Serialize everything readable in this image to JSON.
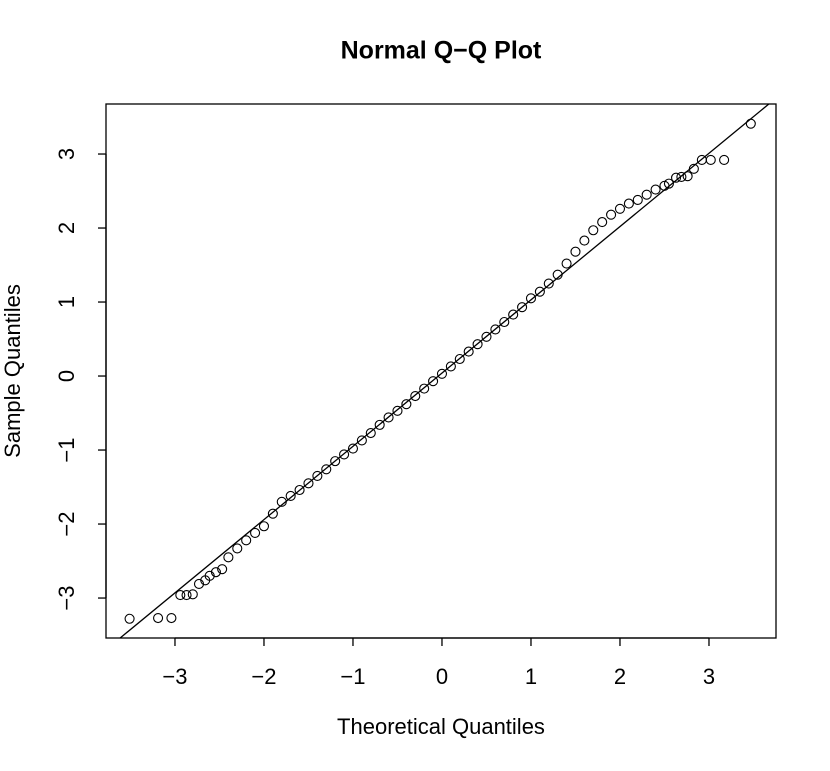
{
  "chart_data": {
    "type": "scatter",
    "title": "Normal Q−Q Plot",
    "x_label": "Theoretical Quantiles",
    "y_label": "Sample Quantiles",
    "xlim": [
      -3.775,
      3.753
    ],
    "ylim": [
      -3.54,
      3.676
    ],
    "xticks": [
      {
        "value": -3,
        "label": "−3"
      },
      {
        "value": -2,
        "label": "−2"
      },
      {
        "value": -1,
        "label": "−1"
      },
      0,
      1,
      2,
      3
    ],
    "yticks": [
      {
        "value": -3,
        "label": "−3"
      },
      {
        "value": -2,
        "label": "−2"
      },
      {
        "value": -1,
        "label": "−1"
      },
      0,
      1,
      2,
      3
    ],
    "color": "#000000",
    "reference_line": {
      "intercept": 0.04,
      "slope": 0.99
    },
    "x": [
      -3.51,
      -3.19,
      -3.04,
      -2.94,
      -2.87,
      -2.8,
      -2.73,
      -2.66,
      -2.61,
      -2.54,
      -2.47,
      -2.4,
      -2.3,
      -2.2,
      -2.1,
      -2.0,
      -1.9,
      -1.8,
      -1.7,
      -1.6,
      -1.5,
      -1.4,
      -1.3,
      -1.2,
      -1.1,
      -1.0,
      -0.9,
      -0.8,
      -0.7,
      -0.6,
      -0.5,
      -0.4,
      -0.3,
      -0.2,
      -0.1,
      0,
      0.1,
      0.2,
      0.3,
      0.4,
      0.5,
      0.6,
      0.7,
      0.8,
      0.9,
      1.0,
      1.1,
      1.2,
      1.3,
      1.4,
      1.5,
      1.6,
      1.7,
      1.8,
      1.9,
      2.0,
      2.1,
      2.2,
      2.3,
      2.4,
      2.5,
      2.55,
      2.63,
      2.69,
      2.76,
      2.83,
      2.92,
      3.02,
      3.17,
      3.47
    ],
    "values": [
      -3.28,
      -3.27,
      -3.27,
      -2.96,
      -2.96,
      -2.95,
      -2.81,
      -2.76,
      -2.7,
      -2.65,
      -2.61,
      -2.45,
      -2.33,
      -2.22,
      -2.12,
      -2.03,
      -1.86,
      -1.7,
      -1.62,
      -1.54,
      -1.45,
      -1.35,
      -1.26,
      -1.15,
      -1.06,
      -0.98,
      -0.87,
      -0.77,
      -0.66,
      -0.56,
      -0.47,
      -0.38,
      -0.27,
      -0.17,
      -0.07,
      0.03,
      0.13,
      0.23,
      0.33,
      0.43,
      0.53,
      0.63,
      0.73,
      0.83,
      0.93,
      1.05,
      1.14,
      1.25,
      1.37,
      1.52,
      1.68,
      1.83,
      1.97,
      2.08,
      2.18,
      2.26,
      2.33,
      2.38,
      2.45,
      2.52,
      2.57,
      2.6,
      2.68,
      2.69,
      2.7,
      2.8,
      2.92,
      2.92,
      2.92,
      3.41
    ]
  }
}
